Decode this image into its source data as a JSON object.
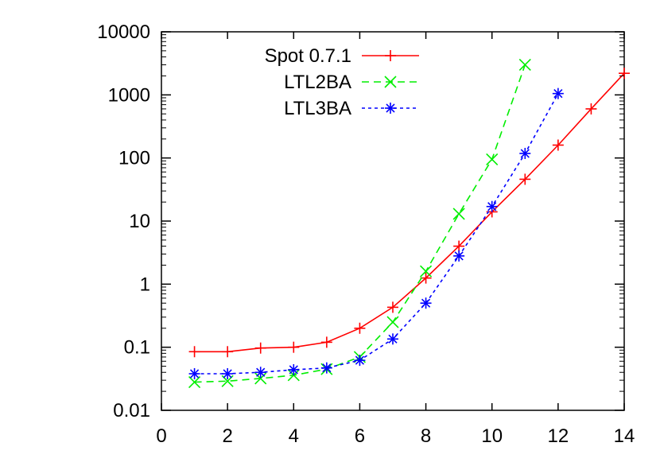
{
  "chart_data": {
    "type": "line",
    "title": "",
    "xlabel": "",
    "ylabel": "",
    "xlim": [
      0,
      14
    ],
    "ylim": [
      0.01,
      10000
    ],
    "y_scale": "log",
    "grid": false,
    "legend_position": "top-left",
    "x_ticks": [
      {
        "value": 0,
        "label": "0"
      },
      {
        "value": 2,
        "label": "2"
      },
      {
        "value": 4,
        "label": "4"
      },
      {
        "value": 6,
        "label": "6"
      },
      {
        "value": 8,
        "label": "8"
      },
      {
        "value": 10,
        "label": "10"
      },
      {
        "value": 12,
        "label": "12"
      },
      {
        "value": 14,
        "label": "14"
      }
    ],
    "y_ticks": [
      {
        "value": 0.01,
        "label": "0.01"
      },
      {
        "value": 0.1,
        "label": "0.1"
      },
      {
        "value": 1,
        "label": "1"
      },
      {
        "value": 10,
        "label": "10"
      },
      {
        "value": 100,
        "label": "100"
      },
      {
        "value": 1000,
        "label": "1000"
      },
      {
        "value": 10000,
        "label": "10000"
      }
    ],
    "series": [
      {
        "name": "Spot 0.7.1",
        "color": "#ff0000",
        "marker": "plus",
        "dash": "solid",
        "x": [
          1,
          2,
          3,
          4,
          5,
          6,
          7,
          8,
          9,
          10,
          11,
          12,
          13,
          14
        ],
        "values": [
          0.085,
          0.085,
          0.097,
          0.1,
          0.12,
          0.2,
          0.43,
          1.25,
          4.0,
          14,
          46,
          160,
          600,
          2200
        ]
      },
      {
        "name": "LTL2BA",
        "color": "#00ee00",
        "marker": "x",
        "dash": "dashed",
        "x": [
          1,
          2,
          3,
          4,
          5,
          6,
          7,
          8,
          9,
          10,
          11
        ],
        "values": [
          0.028,
          0.029,
          0.032,
          0.036,
          0.045,
          0.07,
          0.25,
          1.6,
          13,
          95,
          3000
        ]
      },
      {
        "name": "LTL3BA",
        "color": "#0000ff",
        "marker": "star",
        "dash": "dotted",
        "x": [
          1,
          2,
          3,
          4,
          5,
          6,
          7,
          8,
          9,
          10,
          11,
          12
        ],
        "values": [
          0.038,
          0.038,
          0.04,
          0.044,
          0.047,
          0.062,
          0.135,
          0.5,
          2.8,
          17,
          118,
          1050
        ]
      }
    ]
  }
}
